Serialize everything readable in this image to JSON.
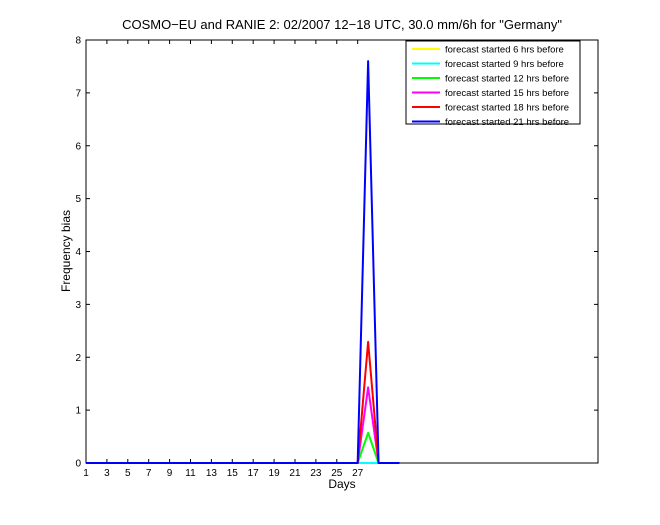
{
  "chart_data": {
    "type": "line",
    "title": "COSMO−EU and RANIE 2: 02/2007 12−18 UTC, 30.0 mm/6h for \"Germany\"",
    "xlabel": "Days",
    "ylabel": "Frequency bias",
    "xlim": [
      1,
      50
    ],
    "ylim": [
      0,
      8
    ],
    "xticks": [
      1,
      3,
      5,
      7,
      9,
      11,
      13,
      15,
      17,
      19,
      21,
      23,
      25,
      27
    ],
    "yticks": [
      0,
      1,
      2,
      3,
      4,
      5,
      6,
      7,
      8
    ],
    "grid": false,
    "legend_position": "top-right",
    "series": [
      {
        "name": "forecast started 6 hrs before",
        "color": "#ffff00",
        "x": [
          1,
          2,
          3,
          4,
          5,
          6,
          7,
          8,
          9,
          10,
          11,
          12,
          13,
          14,
          15,
          16,
          17,
          18,
          19,
          20,
          21,
          22,
          23,
          24,
          25,
          26,
          27,
          28,
          29,
          30,
          31
        ],
        "y": [
          0,
          0,
          0,
          0,
          0,
          0,
          0,
          0,
          0,
          0,
          0,
          0,
          0,
          0,
          0,
          0,
          0,
          0,
          0,
          0,
          0,
          0,
          0,
          0,
          0,
          0,
          0,
          0,
          0,
          0,
          0
        ]
      },
      {
        "name": "forecast started 9 hrs before",
        "color": "#00ffff",
        "x": [
          1,
          2,
          3,
          4,
          5,
          6,
          7,
          8,
          9,
          10,
          11,
          12,
          13,
          14,
          15,
          16,
          17,
          18,
          19,
          20,
          21,
          22,
          23,
          24,
          25,
          26,
          27,
          28,
          29,
          30,
          31
        ],
        "y": [
          0,
          0,
          0,
          0,
          0,
          0,
          0,
          0,
          0,
          0,
          0,
          0,
          0,
          0,
          0,
          0,
          0,
          0,
          0,
          0,
          0,
          0,
          0,
          0,
          0,
          0,
          0,
          0,
          0,
          0,
          0
        ]
      },
      {
        "name": "forecast started 12 hrs before",
        "color": "#00ff00",
        "x": [
          1,
          2,
          3,
          4,
          5,
          6,
          7,
          8,
          9,
          10,
          11,
          12,
          13,
          14,
          15,
          16,
          17,
          18,
          19,
          20,
          21,
          22,
          23,
          24,
          25,
          26,
          27,
          28,
          29,
          30,
          31
        ],
        "y": [
          0,
          0,
          0,
          0,
          0,
          0,
          0,
          0,
          0,
          0,
          0,
          0,
          0,
          0,
          0,
          0,
          0,
          0,
          0,
          0,
          0,
          0,
          0,
          0,
          0,
          0,
          0,
          0.57,
          0,
          0,
          0
        ]
      },
      {
        "name": "forecast started 15 hrs before",
        "color": "#ff00ff",
        "x": [
          1,
          2,
          3,
          4,
          5,
          6,
          7,
          8,
          9,
          10,
          11,
          12,
          13,
          14,
          15,
          16,
          17,
          18,
          19,
          20,
          21,
          22,
          23,
          24,
          25,
          26,
          27,
          28,
          29,
          30,
          31
        ],
        "y": [
          0,
          0,
          0,
          0,
          0,
          0,
          0,
          0,
          0,
          0,
          0,
          0,
          0,
          0,
          0,
          0,
          0,
          0,
          0,
          0,
          0,
          0,
          0,
          0,
          0,
          0,
          0,
          1.43,
          0,
          0,
          0
        ]
      },
      {
        "name": "forecast started 18 hrs before",
        "color": "#ff0000",
        "x": [
          1,
          2,
          3,
          4,
          5,
          6,
          7,
          8,
          9,
          10,
          11,
          12,
          13,
          14,
          15,
          16,
          17,
          18,
          19,
          20,
          21,
          22,
          23,
          24,
          25,
          26,
          27,
          28,
          29,
          30,
          31
        ],
        "y": [
          0,
          0,
          0,
          0,
          0,
          0,
          0,
          0,
          0,
          0,
          0,
          0,
          0,
          0,
          0,
          0,
          0,
          0,
          0,
          0,
          0,
          0,
          0,
          0,
          0,
          0,
          0,
          2.29,
          0,
          0,
          0
        ]
      },
      {
        "name": "forecast started 21 hrs before",
        "color": "#0000ff",
        "x": [
          1,
          2,
          3,
          4,
          5,
          6,
          7,
          8,
          9,
          10,
          11,
          12,
          13,
          14,
          15,
          16,
          17,
          18,
          19,
          20,
          21,
          22,
          23,
          24,
          25,
          26,
          27,
          28,
          29,
          30,
          31
        ],
        "y": [
          0,
          0,
          0,
          0,
          0,
          0,
          0,
          0,
          0,
          0,
          0,
          0,
          0,
          0,
          0,
          0,
          0,
          0,
          0,
          0,
          0,
          0,
          0,
          0,
          0,
          0,
          0,
          7.6,
          0,
          0,
          0
        ]
      }
    ]
  }
}
